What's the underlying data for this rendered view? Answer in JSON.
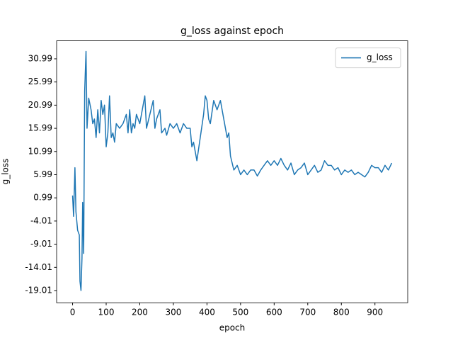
{
  "chart_data": {
    "type": "line",
    "title": "g_loss against epoch",
    "xlabel": "epoch",
    "ylabel": "g_loss",
    "x": [
      0,
      3,
      7,
      10,
      15,
      20,
      22,
      25,
      28,
      30,
      33,
      36,
      40,
      43,
      48,
      55,
      60,
      65,
      70,
      75,
      80,
      85,
      90,
      95,
      100,
      105,
      110,
      115,
      120,
      125,
      130,
      140,
      150,
      160,
      165,
      170,
      175,
      180,
      185,
      190,
      200,
      210,
      215,
      220,
      230,
      240,
      245,
      250,
      260,
      265,
      275,
      280,
      290,
      300,
      310,
      320,
      330,
      340,
      350,
      355,
      360,
      365,
      370,
      380,
      390,
      395,
      400,
      405,
      410,
      420,
      430,
      440,
      450,
      460,
      465,
      470,
      480,
      490,
      500,
      510,
      520,
      530,
      540,
      550,
      560,
      570,
      580,
      590,
      600,
      610,
      620,
      630,
      640,
      650,
      660,
      670,
      680,
      690,
      700,
      710,
      720,
      730,
      740,
      750,
      760,
      770,
      780,
      790,
      800,
      810,
      820,
      830,
      840,
      850,
      860,
      870,
      880,
      890,
      900,
      910,
      920,
      930,
      940,
      950
    ],
    "series": [
      {
        "name": "g_loss",
        "color": "#1f77b4",
        "values": [
          1.5,
          -3,
          7.5,
          -2,
          -6,
          -7,
          -17,
          -19,
          -12,
          0,
          -11,
          24,
          32.6,
          16,
          22.5,
          20,
          17,
          18,
          14,
          20,
          15,
          22,
          19,
          21,
          12,
          15,
          23,
          14,
          15,
          13,
          17,
          16,
          17,
          19,
          15,
          20,
          15,
          17,
          16,
          19,
          17,
          21,
          23,
          16,
          19,
          22,
          16,
          18,
          20,
          15,
          16,
          14.5,
          17,
          16,
          17,
          15,
          17,
          16,
          16,
          12,
          13,
          11,
          9,
          14,
          19,
          23,
          22,
          18,
          17,
          22,
          20,
          22,
          18,
          14,
          15,
          10,
          7,
          8,
          6,
          7,
          6,
          7,
          7,
          5.7,
          7,
          8,
          9,
          8,
          9,
          8,
          9.5,
          8,
          7,
          8.5,
          6,
          7,
          7.5,
          8.5,
          6,
          7,
          8,
          6.5,
          7,
          9,
          8,
          8,
          7,
          7.5,
          6,
          7,
          6.5,
          7,
          6,
          6.5,
          6,
          5.5,
          6.5,
          8,
          7.5,
          7.5,
          6.5,
          8,
          7,
          8.5
        ]
      }
    ],
    "xlim": [
      -47.5,
      997.5
    ],
    "ylim": [
      -21.64,
      34.87
    ],
    "xticks": [
      0,
      100,
      200,
      300,
      400,
      500,
      600,
      700,
      800,
      900
    ],
    "yticks": [
      -19.01,
      -14.01,
      -9.01,
      -4.01,
      0.99,
      5.99,
      10.99,
      15.99,
      20.99,
      25.99,
      30.99
    ],
    "grid": false,
    "legend": "upper right"
  }
}
